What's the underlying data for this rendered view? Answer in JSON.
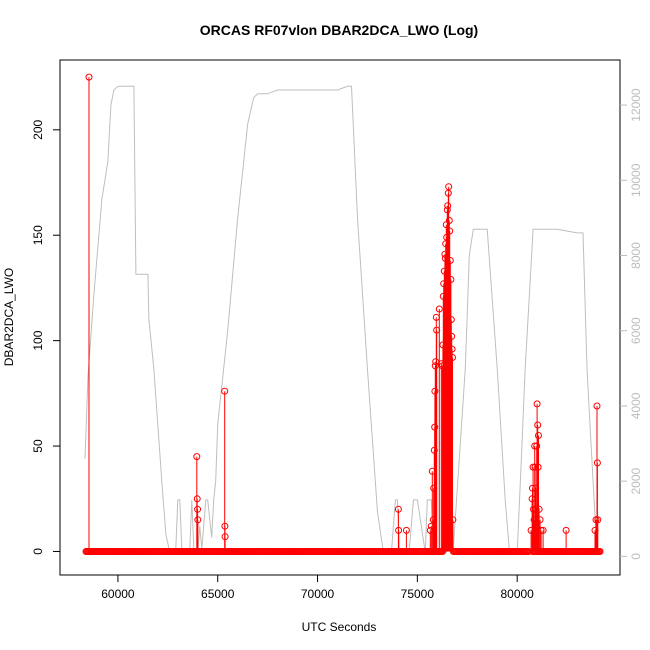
{
  "chart_data": {
    "type": "scatter",
    "title": "ORCAS RF07vlon DBAR2DCA_LWO (Log)",
    "xlabel": "UTC Seconds",
    "ylabel": "DBAR2DCA_LWO",
    "xlim": [
      57700,
      84500
    ],
    "ylim": [
      -5,
      226
    ],
    "ylim_right": [
      -150,
      12800
    ],
    "x_ticks": [
      60000,
      65000,
      70000,
      75000,
      80000
    ],
    "y_ticks": [
      0,
      50,
      100,
      150,
      200
    ],
    "y2_ticks": [
      0,
      2000,
      4000,
      6000,
      8000,
      10000,
      12000
    ],
    "colors": {
      "primary": "#ff0000",
      "secondary": "#bebebe"
    },
    "series": [
      {
        "role": "primary-points",
        "x_range": [
          58400,
          84200
        ],
        "baseline": 0,
        "points": [
          [
            58550,
            225
          ],
          [
            63950,
            45
          ],
          [
            63970,
            25
          ],
          [
            63990,
            20
          ],
          [
            64000,
            15
          ],
          [
            65350,
            76
          ],
          [
            65360,
            12
          ],
          [
            65370,
            7
          ],
          [
            74050,
            20
          ],
          [
            74060,
            10
          ],
          [
            74450,
            10
          ],
          [
            75650,
            10
          ],
          [
            75700,
            12
          ],
          [
            75750,
            38
          ],
          [
            75800,
            15
          ],
          [
            75820,
            30
          ],
          [
            75850,
            48
          ],
          [
            75870,
            59
          ],
          [
            75880,
            76
          ],
          [
            75900,
            88
          ],
          [
            75920,
            90
          ],
          [
            75950,
            111
          ],
          [
            75970,
            105
          ],
          [
            76100,
            115
          ],
          [
            76200,
            89
          ],
          [
            76250,
            88
          ],
          [
            76280,
            98
          ],
          [
            76300,
            121
          ],
          [
            76320,
            127
          ],
          [
            76350,
            133
          ],
          [
            76380,
            141
          ],
          [
            76400,
            139
          ],
          [
            76420,
            146
          ],
          [
            76450,
            155
          ],
          [
            76470,
            149
          ],
          [
            76500,
            162
          ],
          [
            76520,
            164
          ],
          [
            76550,
            170
          ],
          [
            76570,
            173
          ],
          [
            76600,
            157
          ],
          [
            76620,
            152
          ],
          [
            76650,
            138
          ],
          [
            76680,
            129
          ],
          [
            76700,
            110
          ],
          [
            76720,
            102
          ],
          [
            76740,
            96
          ],
          [
            76760,
            92
          ],
          [
            76780,
            15
          ],
          [
            80700,
            10
          ],
          [
            80750,
            25
          ],
          [
            80770,
            30
          ],
          [
            80800,
            40
          ],
          [
            80820,
            20
          ],
          [
            80850,
            15
          ],
          [
            80880,
            50
          ],
          [
            80900,
            40
          ],
          [
            80930,
            30
          ],
          [
            80950,
            20
          ],
          [
            80980,
            50
          ],
          [
            81000,
            70
          ],
          [
            81030,
            60
          ],
          [
            81050,
            40
          ],
          [
            81070,
            55
          ],
          [
            81100,
            20
          ],
          [
            81150,
            15
          ],
          [
            81200,
            10
          ],
          [
            81300,
            10
          ],
          [
            82450,
            10
          ],
          [
            83900,
            10
          ],
          [
            83950,
            15
          ],
          [
            84000,
            69
          ],
          [
            84020,
            42
          ],
          [
            84040,
            15
          ]
        ]
      },
      {
        "role": "secondary-line",
        "axis": "right",
        "x": [
          58350,
          58500,
          58800,
          59200,
          59500,
          59650,
          59800,
          60000,
          60500,
          60800,
          60900,
          61000,
          61500,
          61550,
          61800,
          62000,
          62200,
          62400,
          62600,
          62800,
          62900,
          63000,
          63100,
          63200,
          63300,
          63400,
          63500,
          63600,
          63700,
          63800,
          63900,
          64000,
          64100,
          64200,
          64400,
          64500,
          64700,
          64800,
          64900,
          65000,
          65500,
          66000,
          66500,
          66800,
          67000,
          67200,
          67500,
          68000,
          69000,
          70000,
          70500,
          71000,
          71500,
          71700,
          72000,
          72500,
          73000,
          73300,
          73500,
          73700,
          73900,
          74000,
          74100,
          74200,
          74400,
          74600,
          74800,
          75000,
          75400,
          75500,
          75700,
          75800,
          75950,
          76000,
          76200,
          76400,
          76800,
          77000,
          77400,
          77600,
          77800,
          78000,
          78500,
          79000,
          79400,
          79600,
          80000,
          80200,
          80400,
          80800,
          81000,
          81200,
          81500,
          82000,
          83000,
          83300,
          83500,
          83700,
          84000
        ],
        "values": [
          2600,
          4800,
          7000,
          9500,
          10500,
          12000,
          12400,
          12500,
          12500,
          12500,
          7500,
          7500,
          7500,
          6300,
          5000,
          3500,
          2000,
          600,
          100,
          100,
          200,
          1500,
          1500,
          200,
          100,
          100,
          100,
          200,
          1500,
          200,
          100,
          100,
          800,
          200,
          1500,
          1500,
          500,
          1500,
          2000,
          3500,
          6000,
          9000,
          11500,
          12200,
          12300,
          12300,
          12300,
          12400,
          12400,
          12400,
          12400,
          12400,
          12500,
          12500,
          9000,
          5000,
          1200,
          100,
          100,
          100,
          1500,
          1500,
          200,
          100,
          100,
          200,
          1500,
          1500,
          100,
          1500,
          1500,
          200,
          100,
          100,
          100,
          100,
          200,
          1800,
          5000,
          8000,
          8700,
          8700,
          8700,
          5000,
          1500,
          200,
          100,
          2500,
          5000,
          8700,
          8700,
          8700,
          8700,
          8700,
          8600,
          8600,
          5000,
          3000,
          100
        ]
      }
    ]
  }
}
